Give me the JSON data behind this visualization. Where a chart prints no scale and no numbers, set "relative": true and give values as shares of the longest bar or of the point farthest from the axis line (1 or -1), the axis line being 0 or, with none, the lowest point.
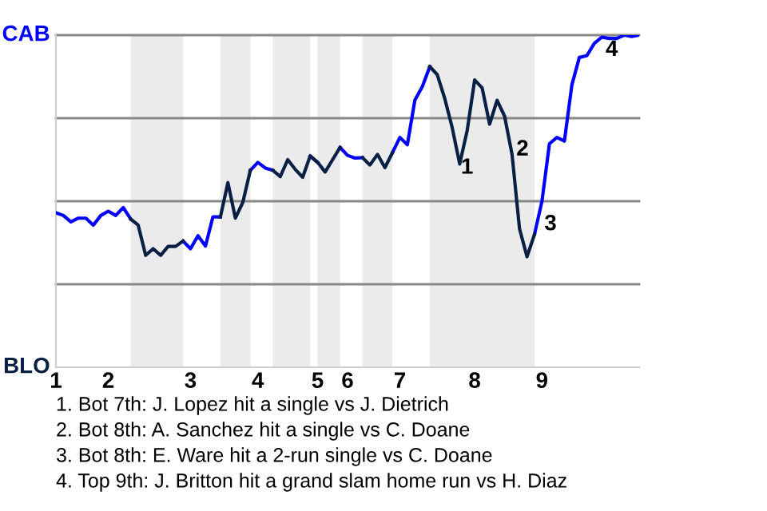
{
  "chart_data": {
    "type": "line",
    "relative": true,
    "categories": [
      "1",
      null,
      null,
      null,
      null,
      null,
      null,
      "2",
      null,
      null,
      null,
      null,
      null,
      null,
      null,
      null,
      null,
      null,
      "3",
      null,
      null,
      null,
      null,
      null,
      null,
      null,
      null,
      "4",
      null,
      null,
      null,
      null,
      null,
      null,
      null,
      "5",
      null,
      null,
      null,
      "6",
      null,
      null,
      null,
      null,
      null,
      null,
      "7",
      null,
      null,
      null,
      null,
      null,
      null,
      null,
      null,
      null,
      "8",
      null,
      null,
      null,
      null,
      null,
      null,
      null,
      null,
      "9",
      null,
      null,
      null,
      null,
      null,
      null,
      null,
      null,
      null,
      null,
      null,
      null,
      null
    ],
    "series": [
      {
        "color": "#0000ff",
        "values": [
          0.465,
          0.457,
          0.438,
          0.449,
          0.449,
          0.428,
          0.457,
          0.47,
          0.457,
          0.481,
          0.446,
          null,
          null,
          null,
          null,
          null,
          null,
          0.38,
          0.357,
          0.396,
          0.365,
          0.453,
          0.453,
          null,
          null,
          null,
          0.593,
          0.617,
          0.6,
          0.593,
          null,
          null,
          null,
          null,
          0.636,
          0.617,
          null,
          null,
          0.662,
          0.638,
          0.63,
          0.631,
          null,
          null,
          null,
          0.646,
          0.692,
          0.67,
          0.804,
          0.845,
          0.905,
          null,
          null,
          null,
          null,
          null,
          null,
          null,
          null,
          null,
          null,
          null,
          null,
          null,
          0.4,
          0.5,
          0.673,
          0.692,
          0.681,
          0.85,
          0.933,
          0.938,
          0.975,
          0.994,
          0.99,
          0.99,
          1,
          0.996,
          1
        ]
      },
      {
        "color": "#0a1f44",
        "values": [
          null,
          null,
          null,
          null,
          null,
          null,
          null,
          null,
          null,
          null,
          0.446,
          0.428,
          0.337,
          0.357,
          0.337,
          0.364,
          0.364,
          0.38,
          null,
          null,
          null,
          null,
          0.453,
          0.556,
          0.449,
          0.497,
          0.593,
          null,
          null,
          0.593,
          0.574,
          0.625,
          0.596,
          0.572,
          0.636,
          0.617,
          0.588,
          0.625,
          0.662,
          null,
          null,
          0.631,
          0.609,
          0.641,
          0.601,
          0.646,
          null,
          null,
          null,
          null,
          0.905,
          0.881,
          0.809,
          0.721,
          0.612,
          0.713,
          0.865,
          0.841,
          0.732,
          0.804,
          0.756,
          0.641,
          0.417,
          0.333,
          0.4,
          null,
          null,
          null,
          null,
          null,
          null,
          null,
          null,
          null,
          null,
          null,
          null,
          null,
          null
        ]
      }
    ],
    "ref_lines": [
      {
        "axis": "y",
        "value": 0.25,
        "color": "#888888"
      },
      {
        "axis": "y",
        "value": 0.5,
        "color": "#888888"
      },
      {
        "axis": "y",
        "value": 0.75,
        "color": "#888888"
      },
      {
        "axis": "y",
        "value": 1,
        "color": "#888888"
      }
    ],
    "annotations": [
      "CAB",
      "BLO",
      "1",
      "2",
      "3",
      "4",
      "1. Bot 7th: J. Lopez hit a single vs J. Dietrich",
      "2. Bot 8th: A. Sanchez hit a single vs C. Doane",
      "3. Bot 8th: E. Ware hit a 2-run single vs C. Doane",
      "4. Top 9th: J. Britton hit a grand slam home run vs H. Diaz"
    ]
  }
}
